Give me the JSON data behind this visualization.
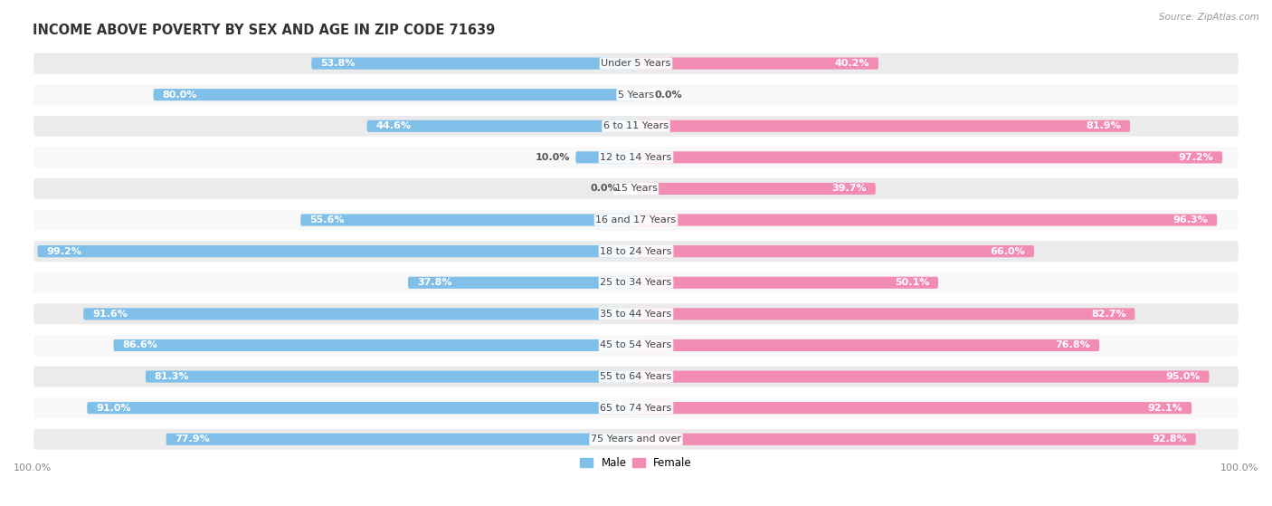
{
  "title": "INCOME ABOVE POVERTY BY SEX AND AGE IN ZIP CODE 71639",
  "source": "Source: ZipAtlas.com",
  "categories": [
    "Under 5 Years",
    "5 Years",
    "6 to 11 Years",
    "12 to 14 Years",
    "15 Years",
    "16 and 17 Years",
    "18 to 24 Years",
    "25 to 34 Years",
    "35 to 44 Years",
    "45 to 54 Years",
    "55 to 64 Years",
    "65 to 74 Years",
    "75 Years and over"
  ],
  "male_values": [
    53.8,
    80.0,
    44.6,
    10.0,
    0.0,
    55.6,
    99.2,
    37.8,
    91.6,
    86.6,
    81.3,
    91.0,
    77.9
  ],
  "female_values": [
    40.2,
    0.0,
    81.9,
    97.2,
    39.7,
    96.3,
    66.0,
    50.1,
    82.7,
    76.8,
    95.0,
    92.1,
    92.8
  ],
  "male_color": "#7fbfe8",
  "female_color": "#f28cb5",
  "male_color_light": "#c5dff3",
  "female_color_light": "#fac8da",
  "row_bg_odd": "#ebebeb",
  "row_bg_even": "#f8f8f8",
  "title_fontsize": 10.5,
  "label_fontsize": 8,
  "value_fontsize": 8,
  "tick_fontsize": 8,
  "legend_fontsize": 8.5
}
